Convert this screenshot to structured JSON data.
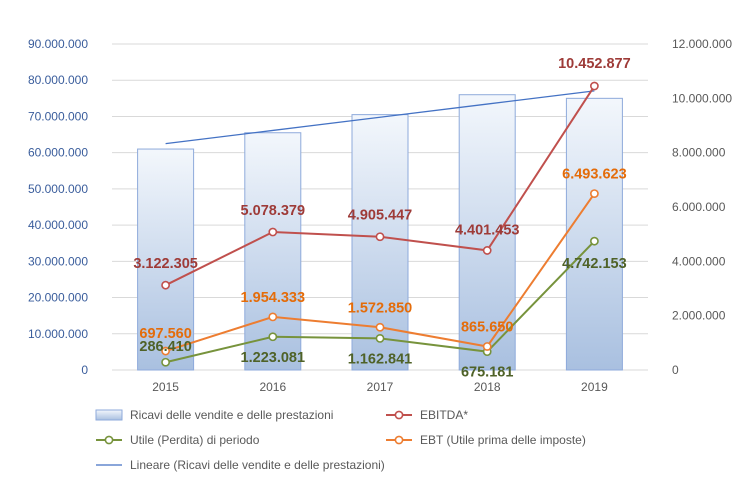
{
  "chart_data": {
    "type": "bar",
    "categories": [
      "2015",
      "2016",
      "2017",
      "2018",
      "2019"
    ],
    "y_left": {
      "range": [
        0,
        90000000
      ],
      "step": 10000000,
      "ticks": [
        "0",
        "10.000.000",
        "20.000.000",
        "30.000.000",
        "40.000.000",
        "50.000.000",
        "60.000.000",
        "70.000.000",
        "80.000.000",
        "90.000.000"
      ]
    },
    "y_right": {
      "range": [
        0,
        12000000
      ],
      "step": 2000000,
      "ticks": [
        "0",
        "2.000.000",
        "4.000.000",
        "6.000.000",
        "8.000.000",
        "10.000.000",
        "12.000.000"
      ]
    },
    "series": [
      {
        "name": "Ricavi delle vendite e delle prestazioni",
        "kind": "bar",
        "axis": "left",
        "values": [
          61000000,
          65500000,
          70500000,
          76000000,
          75000000
        ],
        "color": "#b8cce4",
        "border": "#8eaadb"
      },
      {
        "name": "EBITDA*",
        "kind": "line",
        "axis": "right",
        "values": [
          3122305,
          5078379,
          4905447,
          4401453,
          10452877
        ],
        "labels": [
          "3.122.305",
          "5.078.379",
          "4.905.447",
          "4.401.453",
          "10.452.877"
        ],
        "color": "#c0504d",
        "label_color": "#9e3b38"
      },
      {
        "name": "Utile (Perdita) di periodo",
        "kind": "line",
        "axis": "right",
        "values": [
          286410,
          1223081,
          1162841,
          675181,
          4742153
        ],
        "labels": [
          "286.410",
          "1.223.081",
          "1.162.841",
          "675.181",
          "4.742.153"
        ],
        "color": "#77933c",
        "label_color": "#4f6228"
      },
      {
        "name": "EBT (Utile prima delle imposte)",
        "kind": "line",
        "axis": "right",
        "values": [
          697560,
          1954333,
          1572850,
          865650,
          6493623
        ],
        "labels": [
          "697.560",
          "1.954.333",
          "1.572.850",
          "865.650",
          "6.493.623"
        ],
        "color": "#ed7d31",
        "label_color": "#e46c0a"
      },
      {
        "name": "Lineare (Ricavi delle vendite e delle prestazioni)",
        "kind": "trendline",
        "axis": "left",
        "values": [
          62500000,
          66140000,
          69780000,
          73420000,
          77060000
        ],
        "color": "#4472c4"
      }
    ],
    "legend": {
      "position": "bottom",
      "items": [
        "Ricavi delle vendite e delle prestazioni",
        "EBITDA*",
        "Utile (Perdita) di periodo",
        "EBT (Utile prima delle imposte)",
        "Lineare (Ricavi delle vendite e delle prestazioni)"
      ]
    }
  }
}
